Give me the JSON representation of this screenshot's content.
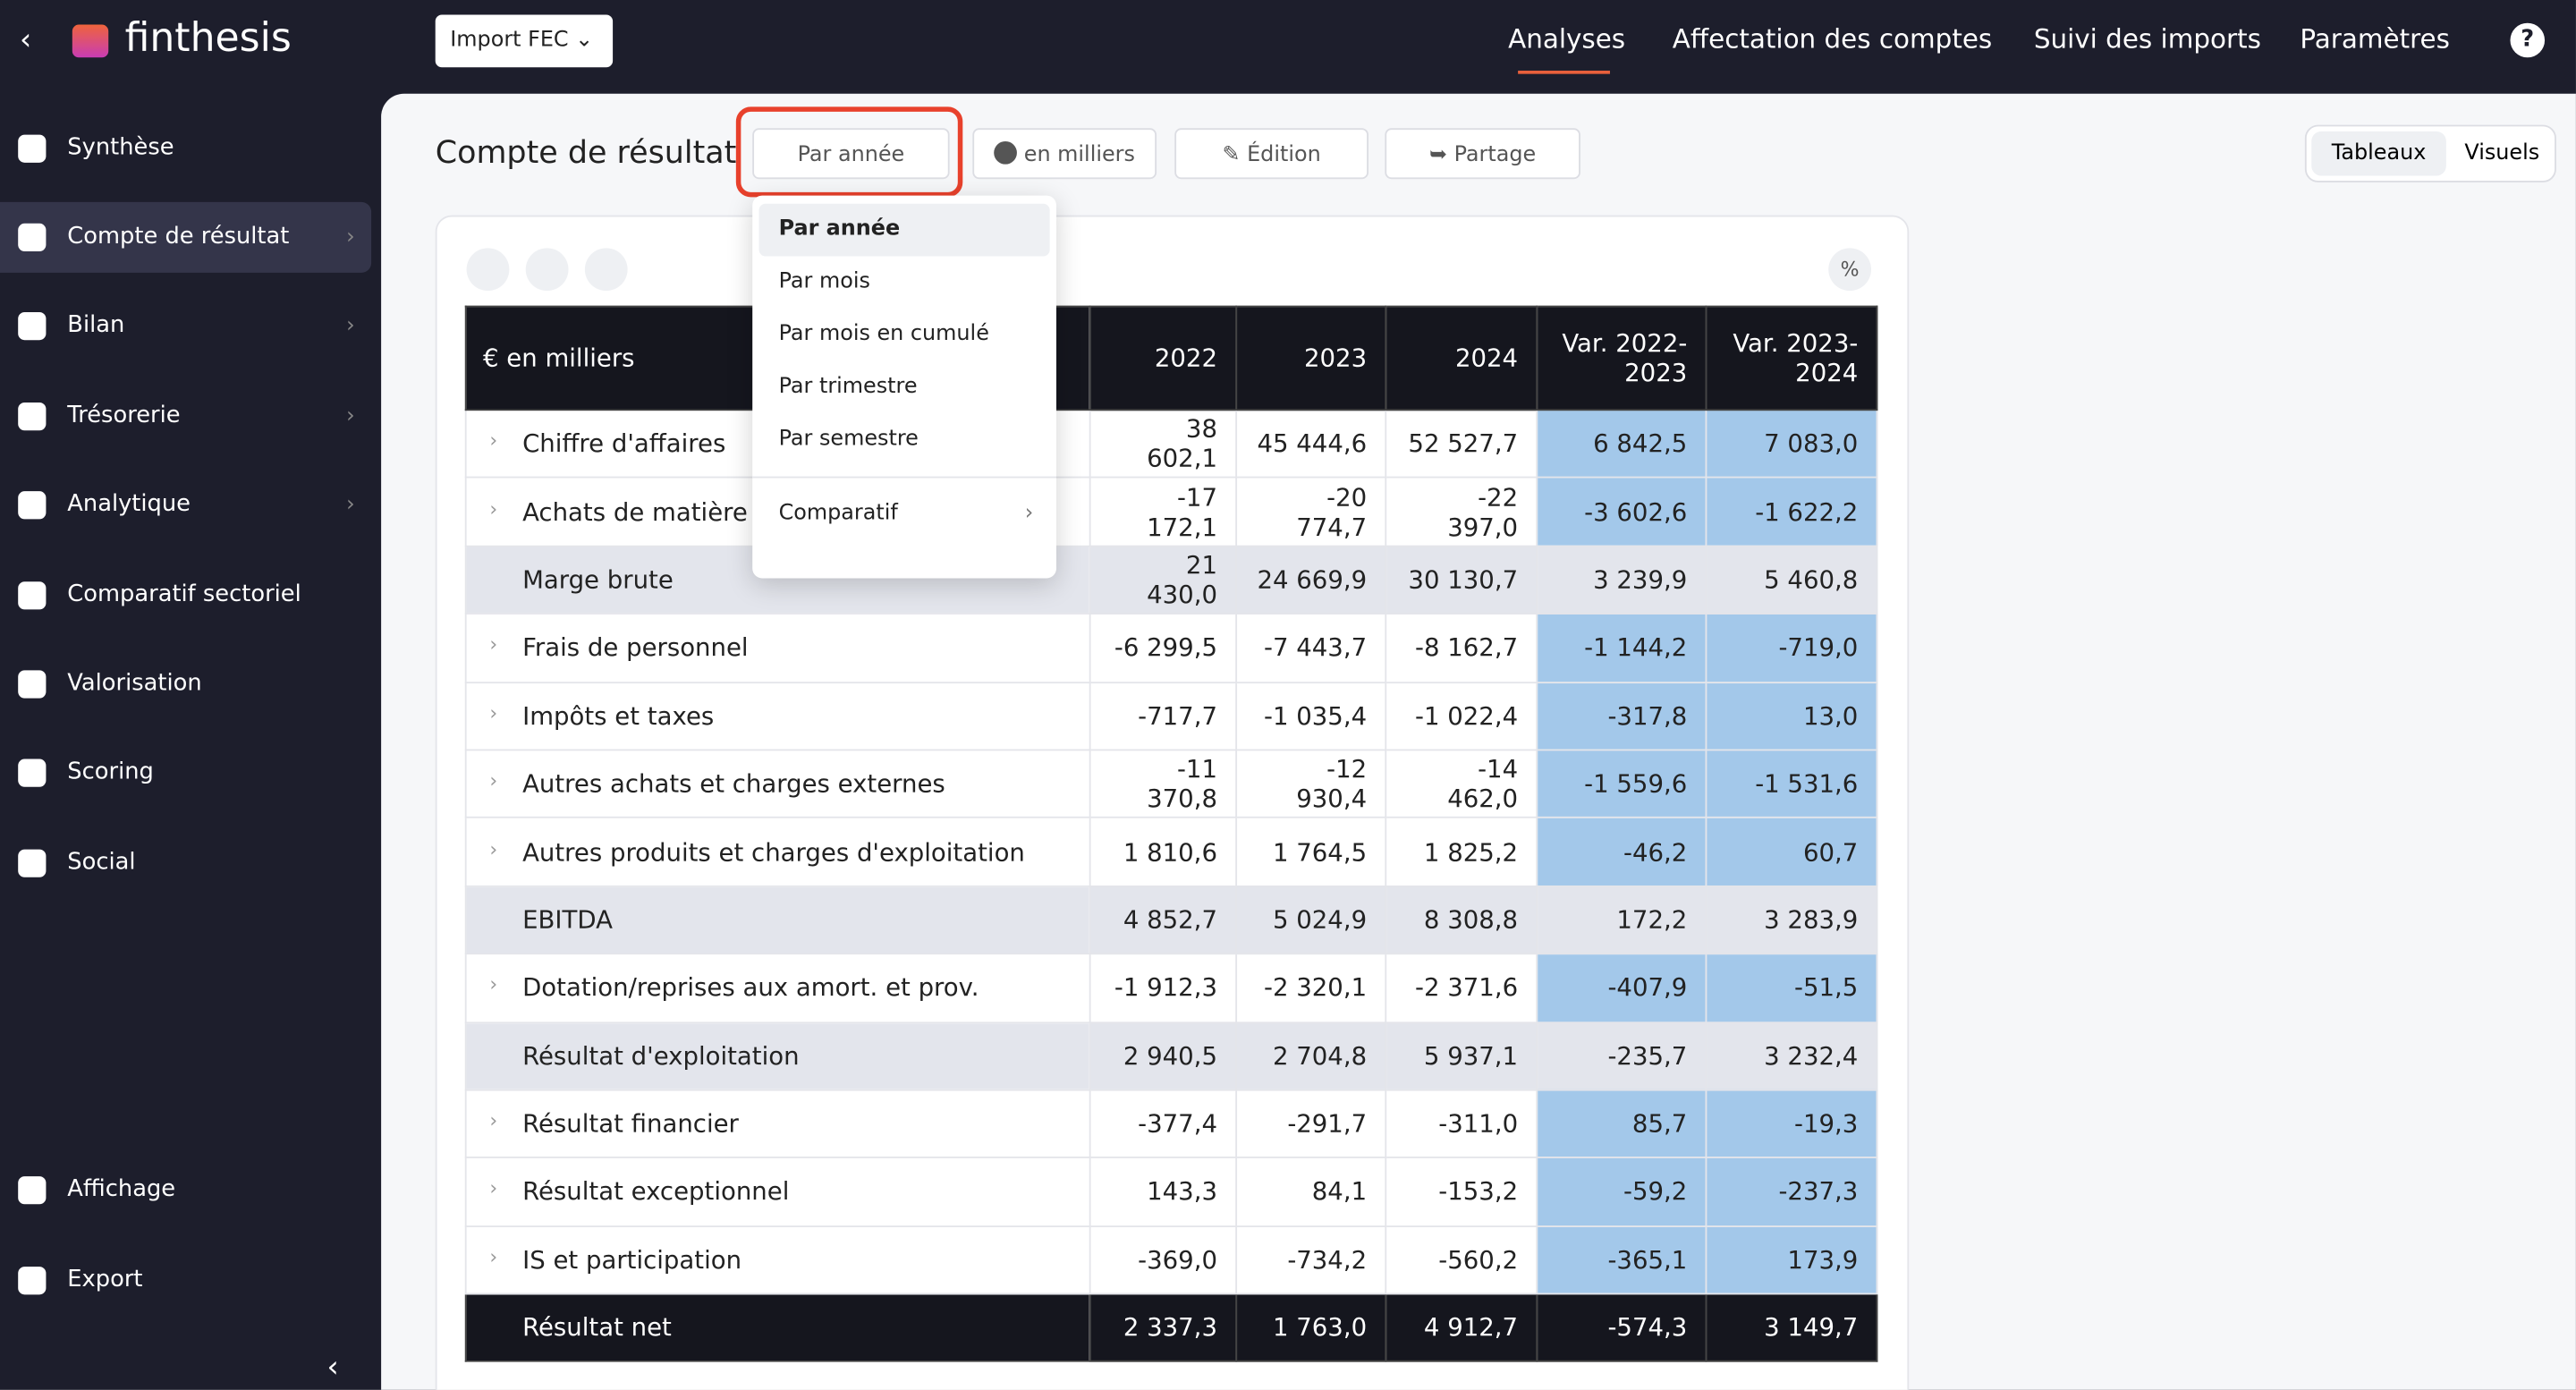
{
  "logo": "finthesis",
  "nav": {
    "items": [
      "Synthèse",
      "Compte de résultat",
      "Bilan",
      "Trésorerie",
      "Analytique",
      "Comparatif sectoriel",
      "Valorisation",
      "Scoring",
      "Social"
    ],
    "bottom": [
      "Affichage",
      "Export"
    ]
  },
  "topbar": {
    "import_button": "Import FEC",
    "tabs": [
      "Analyses",
      "Affectation des comptes",
      "Suivi des imports",
      "Paramètres"
    ],
    "help": "?"
  },
  "page": {
    "title": "Compte de résultat"
  },
  "toolbar": {
    "period": "Par année",
    "unit": "en milliers",
    "edit": "Édition",
    "share": "Partage"
  },
  "view_toggle": [
    "Tableaux",
    "Visuels"
  ],
  "dropdown": {
    "items": [
      "Par année",
      "Par mois",
      "Par mois en cumulé",
      "Par trimestre",
      "Par semestre"
    ],
    "submenu": "Comparatif"
  },
  "table": {
    "percent_button": "%",
    "unit_header": "€ en milliers",
    "columns": [
      "2022",
      "2023",
      "2024",
      "Var. 2022-2023",
      "Var. 2023-2024"
    ],
    "rows": [
      [
        "Chiffre d'affaires",
        "38 602,1",
        "45 444,6",
        "52 527,7",
        "6 842,5",
        "7 083,0"
      ],
      [
        "Achats de matière",
        "-17 172,1",
        "-20 774,7",
        "-22 397,0",
        "-3 602,6",
        "-1 622,2"
      ],
      [
        "Marge brute",
        "21 430,0",
        "24 669,9",
        "30 130,7",
        "3 239,9",
        "5 460,8"
      ],
      [
        "Frais de personnel",
        "-6 299,5",
        "-7 443,7",
        "-8 162,7",
        "-1 144,2",
        "-719,0"
      ],
      [
        "Impôts et taxes",
        "-717,7",
        "-1 035,4",
        "-1 022,4",
        "-317,8",
        "13,0"
      ],
      [
        "Autres achats et charges externes",
        "-11 370,8",
        "-12 930,4",
        "-14 462,0",
        "-1 559,6",
        "-1 531,6"
      ],
      [
        "Autres produits et charges d'exploitation",
        "1 810,6",
        "1 764,5",
        "1 825,2",
        "-46,2",
        "60,7"
      ],
      [
        "EBITDA",
        "4 852,7",
        "5 024,9",
        "8 308,8",
        "172,2",
        "3 283,9"
      ],
      [
        "Dotation/reprises aux amort. et prov.",
        "-1 912,3",
        "-2 320,1",
        "-2 371,6",
        "-407,9",
        "-51,5"
      ],
      [
        "Résultat d'exploitation",
        "2 940,5",
        "2 704,8",
        "5 937,1",
        "-235,7",
        "3 232,4"
      ],
      [
        "Résultat financier",
        "-377,4",
        "-291,7",
        "-311,0",
        "85,7",
        "-19,3"
      ],
      [
        "Résultat exceptionnel",
        "143,3",
        "84,1",
        "-153,2",
        "-59,2",
        "-237,3"
      ],
      [
        "IS et participation",
        "-369,0",
        "-734,2",
        "-560,2",
        "-365,1",
        "173,9"
      ],
      [
        "Résultat net",
        "2 337,3",
        "1 763,0",
        "4 912,7",
        "-574,3",
        "3 149,7"
      ]
    ]
  }
}
